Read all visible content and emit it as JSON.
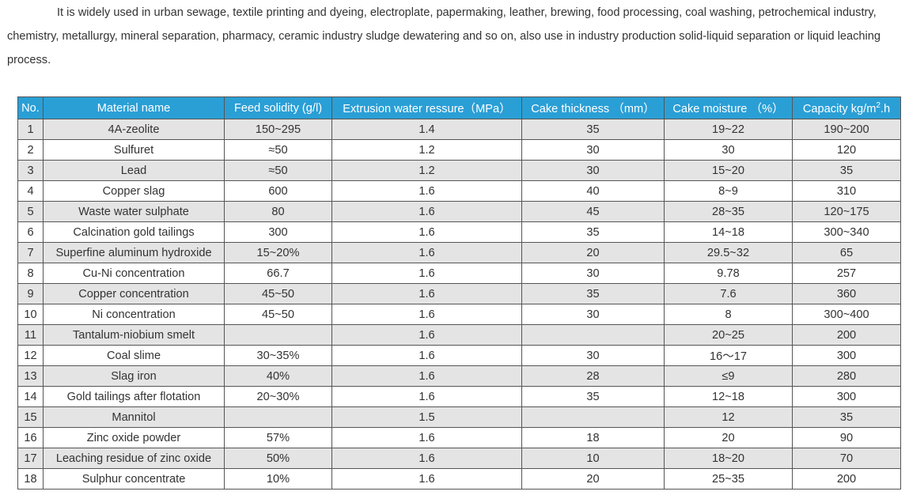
{
  "intro": "It is widely used in urban sewage, textile printing and dyeing, electroplate, papermaking, leather, brewing, food processing, coal washing, petrochemical industry, chemistry, metallurgy, mineral separation, pharmacy, ceramic industry sludge dewatering and so on, also use in industry production solid-liquid separation or liquid leaching process.",
  "table": {
    "header": [
      "No.",
      "Material name",
      "Feed solidity  (g/l)",
      "Extrusion water ressure（MPa）",
      "Cake thickness （mm）",
      "Cake moisture （%）",
      [
        "Capacity  kg/m",
        "2",
        ".h"
      ]
    ],
    "rows": [
      [
        "1",
        "4A-zeolite",
        "150~295",
        "1.4",
        "35",
        "19~22",
        "190~200"
      ],
      [
        "2",
        "Sulfuret",
        "≈50",
        "1.2",
        "30",
        "30",
        "120"
      ],
      [
        "3",
        "Lead",
        "≈50",
        "1.2",
        "30",
        "15~20",
        "35"
      ],
      [
        "4",
        "Copper slag",
        "600",
        "1.6",
        "40",
        "8~9",
        "310"
      ],
      [
        "5",
        "Waste water sulphate",
        "80",
        "1.6",
        "45",
        "28~35",
        "120~175"
      ],
      [
        "6",
        "Calcination gold tailings",
        "300",
        "1.6",
        "35",
        "14~18",
        "300~340"
      ],
      [
        "7",
        "Superfine aluminum hydroxide",
        "15~20%",
        "1.6",
        "20",
        "29.5~32",
        "65"
      ],
      [
        "8",
        "Cu-Ni concentration",
        "66.7",
        "1.6",
        "30",
        "9.78",
        "257"
      ],
      [
        "9",
        "Copper concentration",
        "45~50",
        "1.6",
        "35",
        "7.6",
        "360"
      ],
      [
        "10",
        "Ni concentration",
        "45~50",
        "1.6",
        "30",
        "8",
        "300~400"
      ],
      [
        "11",
        "Tantalum-niobium smelt",
        null,
        "1.6",
        null,
        "20~25",
        "200"
      ],
      [
        "12",
        "Coal slime",
        "30~35%",
        "1.6",
        "30",
        "16～17",
        "300"
      ],
      [
        "13",
        "Slag iron",
        "40%",
        "1.6",
        "28",
        "≤9",
        "280"
      ],
      [
        "14",
        "Gold tailings after flotation",
        "20~30%",
        "1.6",
        "35",
        "12~18",
        "300"
      ],
      [
        "15",
        "Mannitol",
        null,
        "1.5",
        null,
        "12",
        "35"
      ],
      [
        "16",
        "Zinc oxide powder",
        "57%",
        "1.6",
        "18",
        "20",
        "90"
      ],
      [
        "17",
        "Leaching residue of zinc oxide",
        "50%",
        "1.6",
        "10",
        "18~20",
        "70"
      ],
      [
        "18",
        "Sulphur concentrate",
        "10%",
        "1.6",
        "20",
        "25~35",
        "200"
      ]
    ]
  }
}
